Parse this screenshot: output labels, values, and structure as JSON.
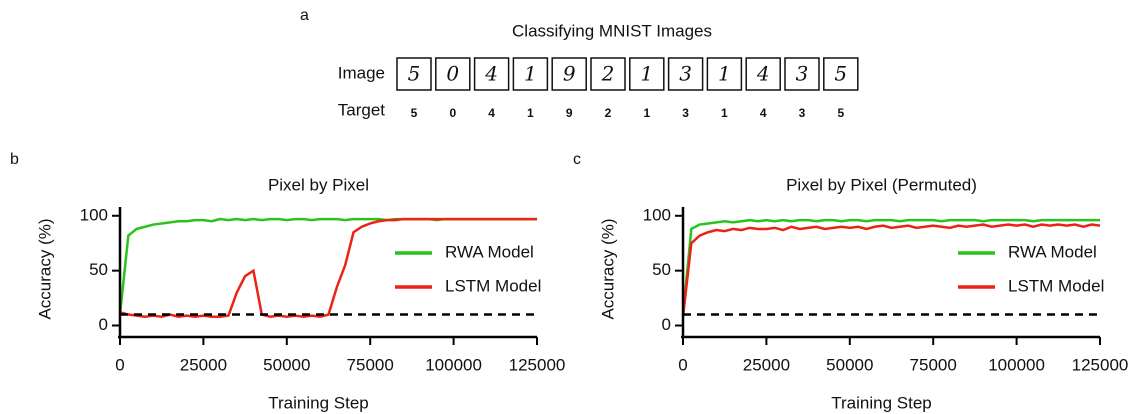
{
  "panel_a": {
    "label": "a",
    "title": "Classifying MNIST Images",
    "row_labels": [
      "Image",
      "Target"
    ],
    "targets": [
      5,
      0,
      4,
      1,
      9,
      2,
      1,
      3,
      1,
      4,
      3,
      5
    ]
  },
  "chart_data": [
    {
      "type": "line",
      "label": "b",
      "title": "Pixel by Pixel",
      "x_label": "Training  Step",
      "y_label": "Accuracy (%)",
      "xlim": [
        0,
        125000
      ],
      "xticks": [
        0,
        25000,
        50000,
        75000,
        100000,
        125000
      ],
      "ylim": [
        -5,
        108
      ],
      "yticks": [
        0,
        50,
        100
      ],
      "legend": "right",
      "hline": {
        "value": 10,
        "color": "#000000",
        "style": "dashed"
      },
      "x": [
        0,
        2500,
        5000,
        7500,
        10000,
        12500,
        15000,
        17500,
        20000,
        22500,
        25000,
        27500,
        30000,
        32500,
        35000,
        37500,
        40000,
        42500,
        45000,
        47500,
        50000,
        52500,
        55000,
        57500,
        60000,
        62500,
        65000,
        67500,
        70000,
        72500,
        75000,
        77500,
        80000,
        82500,
        85000,
        87500,
        90000,
        92500,
        95000,
        97500,
        100000,
        102500,
        105000,
        107500,
        110000,
        112500,
        115000,
        117500,
        120000,
        122500,
        125000
      ],
      "series": [
        {
          "name": "RWA Model",
          "color": "#2bc21d",
          "values": [
            10,
            82,
            88,
            90,
            92,
            93,
            94,
            95,
            95,
            96,
            96,
            95,
            97,
            96,
            97,
            96,
            97,
            96,
            97,
            97,
            96,
            97,
            97,
            96,
            97,
            97,
            97,
            96,
            97,
            97,
            97,
            97,
            96,
            97,
            97,
            97,
            97,
            97,
            96,
            97,
            97,
            97,
            97,
            97,
            97,
            97,
            97,
            97,
            97,
            97,
            97
          ]
        },
        {
          "name": "LSTM Model",
          "color": "#ec2217",
          "values": [
            12,
            10,
            9,
            8,
            9,
            8,
            10,
            8,
            9,
            8,
            9,
            8,
            8,
            9,
            30,
            45,
            50,
            10,
            8,
            9,
            8,
            9,
            8,
            9,
            8,
            10,
            35,
            55,
            85,
            90,
            93,
            95,
            96,
            96,
            97,
            97,
            97,
            97,
            97,
            97,
            97,
            97,
            97,
            97,
            97,
            97,
            97,
            97,
            97,
            97,
            97
          ]
        }
      ]
    },
    {
      "type": "line",
      "label": "c",
      "title": "Pixel by Pixel (Permuted)",
      "x_label": "Training  Step",
      "y_label": "Accuracy (%)",
      "xlim": [
        0,
        125000
      ],
      "xticks": [
        0,
        25000,
        50000,
        75000,
        100000,
        125000
      ],
      "ylim": [
        -5,
        108
      ],
      "yticks": [
        0,
        50,
        100
      ],
      "legend": "right",
      "hline": {
        "value": 10,
        "color": "#000000",
        "style": "dashed"
      },
      "x": [
        0,
        2500,
        5000,
        7500,
        10000,
        12500,
        15000,
        17500,
        20000,
        22500,
        25000,
        27500,
        30000,
        32500,
        35000,
        37500,
        40000,
        42500,
        45000,
        47500,
        50000,
        52500,
        55000,
        57500,
        60000,
        62500,
        65000,
        67500,
        70000,
        72500,
        75000,
        77500,
        80000,
        82500,
        85000,
        87500,
        90000,
        92500,
        95000,
        97500,
        100000,
        102500,
        105000,
        107500,
        110000,
        112500,
        115000,
        117500,
        120000,
        122500,
        125000
      ],
      "series": [
        {
          "name": "RWA Model",
          "color": "#2bc21d",
          "values": [
            10,
            88,
            92,
            93,
            94,
            95,
            94,
            95,
            96,
            95,
            96,
            95,
            96,
            95,
            96,
            96,
            95,
            96,
            96,
            95,
            96,
            96,
            95,
            96,
            96,
            96,
            95,
            96,
            96,
            96,
            96,
            95,
            96,
            96,
            96,
            96,
            95,
            96,
            96,
            96,
            96,
            96,
            95,
            96,
            96,
            96,
            96,
            96,
            96,
            96,
            96
          ]
        },
        {
          "name": "LSTM Model",
          "color": "#ec2217",
          "values": [
            8,
            75,
            82,
            85,
            87,
            86,
            88,
            87,
            89,
            88,
            88,
            89,
            87,
            90,
            88,
            89,
            90,
            88,
            89,
            90,
            89,
            90,
            88,
            90,
            91,
            89,
            90,
            91,
            89,
            90,
            91,
            90,
            89,
            91,
            90,
            91,
            92,
            90,
            91,
            92,
            91,
            92,
            90,
            92,
            91,
            92,
            91,
            92,
            90,
            92,
            91
          ]
        }
      ]
    }
  ]
}
